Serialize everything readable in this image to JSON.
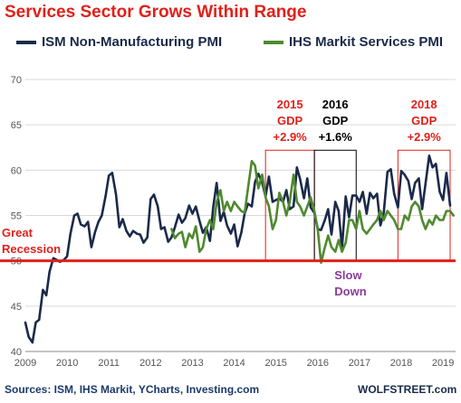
{
  "title": "Services Sector Grows Within Range",
  "source": "Sources: ISM, IHS Markit, YCharts, Investing.com",
  "watermark": "WOLFSTREET.com",
  "colors": {
    "ism": "#1b2a4a",
    "ihs": "#4e8a2e",
    "red": "#e0201a",
    "purple": "#8a3b9e",
    "grid": "#d9d9d9",
    "axis_text": "#555555"
  },
  "chart_data": {
    "type": "line",
    "xlabel": "",
    "ylabel": "",
    "xlim": [
      2009.0,
      2019.3
    ],
    "ylim": [
      40,
      70
    ],
    "xticks": [
      "2009",
      "2010",
      "2011",
      "2012",
      "2013",
      "2014",
      "2015",
      "2016",
      "2017",
      "2018",
      "2019"
    ],
    "yticks": [
      "40",
      "45",
      "50",
      "55",
      "60",
      "65",
      "70"
    ],
    "grid": true,
    "legend": "top",
    "reference_line": {
      "y": 50,
      "label": "Great Recession"
    },
    "series": [
      {
        "name": "ISM Non-Manufacturing PMI",
        "color": "#1b2a4a",
        "points": [
          [
            2009.0,
            43.2
          ],
          [
            2009.08,
            41.6
          ],
          [
            2009.17,
            41.0
          ],
          [
            2009.25,
            43.2
          ],
          [
            2009.33,
            43.5
          ],
          [
            2009.42,
            46.8
          ],
          [
            2009.5,
            46.2
          ],
          [
            2009.58,
            48.8
          ],
          [
            2009.67,
            50.3
          ],
          [
            2009.75,
            50.1
          ],
          [
            2009.83,
            49.9
          ],
          [
            2009.92,
            50.1
          ],
          [
            2010.0,
            50.5
          ],
          [
            2010.08,
            53.0
          ],
          [
            2010.17,
            55.0
          ],
          [
            2010.25,
            55.2
          ],
          [
            2010.33,
            54.0
          ],
          [
            2010.42,
            53.8
          ],
          [
            2010.5,
            54.3
          ],
          [
            2010.58,
            51.5
          ],
          [
            2010.67,
            53.2
          ],
          [
            2010.75,
            54.3
          ],
          [
            2010.83,
            55.0
          ],
          [
            2010.92,
            57.1
          ],
          [
            2011.0,
            59.4
          ],
          [
            2011.08,
            59.7
          ],
          [
            2011.17,
            57.3
          ],
          [
            2011.25,
            53.7
          ],
          [
            2011.33,
            54.6
          ],
          [
            2011.42,
            53.3
          ],
          [
            2011.5,
            52.7
          ],
          [
            2011.58,
            53.3
          ],
          [
            2011.67,
            53.0
          ],
          [
            2011.75,
            52.9
          ],
          [
            2011.83,
            52.0
          ],
          [
            2011.92,
            52.6
          ],
          [
            2012.0,
            56.8
          ],
          [
            2012.08,
            57.3
          ],
          [
            2012.17,
            56.0
          ],
          [
            2012.25,
            53.5
          ],
          [
            2012.33,
            53.7
          ],
          [
            2012.42,
            52.1
          ],
          [
            2012.5,
            52.6
          ],
          [
            2012.58,
            53.7
          ],
          [
            2012.67,
            55.1
          ],
          [
            2012.75,
            54.2
          ],
          [
            2012.83,
            54.7
          ],
          [
            2012.92,
            56.1
          ],
          [
            2013.0,
            55.2
          ],
          [
            2013.08,
            56.0
          ],
          [
            2013.17,
            54.4
          ],
          [
            2013.25,
            53.1
          ],
          [
            2013.33,
            53.7
          ],
          [
            2013.42,
            52.2
          ],
          [
            2013.5,
            56.0
          ],
          [
            2013.58,
            58.6
          ],
          [
            2013.67,
            54.4
          ],
          [
            2013.75,
            55.4
          ],
          [
            2013.83,
            53.9
          ],
          [
            2013.92,
            53.0
          ],
          [
            2014.0,
            54.0
          ],
          [
            2014.08,
            51.6
          ],
          [
            2014.17,
            53.1
          ],
          [
            2014.25,
            55.2
          ],
          [
            2014.33,
            56.3
          ],
          [
            2014.42,
            56.0
          ],
          [
            2014.5,
            58.7
          ],
          [
            2014.58,
            59.6
          ],
          [
            2014.67,
            58.6
          ],
          [
            2014.75,
            57.1
          ],
          [
            2014.83,
            59.3
          ],
          [
            2014.92,
            56.5
          ],
          [
            2015.0,
            56.7
          ],
          [
            2015.08,
            56.9
          ],
          [
            2015.17,
            56.5
          ],
          [
            2015.25,
            57.8
          ],
          [
            2015.33,
            55.7
          ],
          [
            2015.42,
            56.0
          ],
          [
            2015.5,
            60.3
          ],
          [
            2015.58,
            59.0
          ],
          [
            2015.67,
            56.9
          ],
          [
            2015.75,
            59.1
          ],
          [
            2015.83,
            55.9
          ],
          [
            2015.92,
            55.3
          ],
          [
            2016.0,
            53.5
          ],
          [
            2016.08,
            53.4
          ],
          [
            2016.17,
            54.5
          ],
          [
            2016.25,
            55.7
          ],
          [
            2016.33,
            52.9
          ],
          [
            2016.42,
            56.5
          ],
          [
            2016.5,
            55.5
          ],
          [
            2016.58,
            51.4
          ],
          [
            2016.67,
            57.1
          ],
          [
            2016.75,
            54.8
          ],
          [
            2016.83,
            57.2
          ],
          [
            2016.92,
            57.2
          ],
          [
            2017.0,
            56.5
          ],
          [
            2017.08,
            57.6
          ],
          [
            2017.17,
            55.2
          ],
          [
            2017.25,
            57.5
          ],
          [
            2017.33,
            56.9
          ],
          [
            2017.42,
            57.4
          ],
          [
            2017.5,
            53.9
          ],
          [
            2017.58,
            55.3
          ],
          [
            2017.67,
            59.8
          ],
          [
            2017.75,
            60.1
          ],
          [
            2017.83,
            57.4
          ],
          [
            2017.92,
            55.9
          ],
          [
            2018.0,
            59.9
          ],
          [
            2018.08,
            59.5
          ],
          [
            2018.17,
            58.8
          ],
          [
            2018.25,
            56.8
          ],
          [
            2018.33,
            58.6
          ],
          [
            2018.42,
            59.1
          ],
          [
            2018.5,
            55.7
          ],
          [
            2018.58,
            58.5
          ],
          [
            2018.67,
            61.6
          ],
          [
            2018.75,
            60.3
          ],
          [
            2018.83,
            60.7
          ],
          [
            2018.92,
            57.6
          ],
          [
            2019.0,
            56.7
          ],
          [
            2019.08,
            59.7
          ],
          [
            2019.17,
            56.1
          ]
        ]
      },
      {
        "name": "IHS Markit Services PMI",
        "color": "#4e8a2e",
        "points": [
          [
            2012.5,
            53.5
          ],
          [
            2012.58,
            52.5
          ],
          [
            2012.67,
            53.0
          ],
          [
            2012.75,
            53.2
          ],
          [
            2012.83,
            51.5
          ],
          [
            2012.92,
            53.0
          ],
          [
            2013.0,
            52.5
          ],
          [
            2013.08,
            53.8
          ],
          [
            2013.17,
            51.0
          ],
          [
            2013.25,
            51.5
          ],
          [
            2013.33,
            53.5
          ],
          [
            2013.42,
            54.5
          ],
          [
            2013.5,
            53.5
          ],
          [
            2013.58,
            56.5
          ],
          [
            2013.67,
            57.8
          ],
          [
            2013.75,
            55.5
          ],
          [
            2013.83,
            56.5
          ],
          [
            2013.92,
            55.5
          ],
          [
            2014.0,
            56.5
          ],
          [
            2014.08,
            56.0
          ],
          [
            2014.17,
            55.5
          ],
          [
            2014.25,
            55.3
          ],
          [
            2014.33,
            58.0
          ],
          [
            2014.42,
            61.0
          ],
          [
            2014.5,
            60.5
          ],
          [
            2014.58,
            58.0
          ],
          [
            2014.67,
            59.5
          ],
          [
            2014.75,
            57.0
          ],
          [
            2014.83,
            56.0
          ],
          [
            2014.92,
            53.5
          ],
          [
            2015.0,
            54.5
          ],
          [
            2015.08,
            57.5
          ],
          [
            2015.17,
            56.5
          ],
          [
            2015.25,
            55.0
          ],
          [
            2015.33,
            56.5
          ],
          [
            2015.42,
            59.5
          ],
          [
            2015.5,
            56.5
          ],
          [
            2015.58,
            56.0
          ],
          [
            2015.67,
            55.0
          ],
          [
            2015.75,
            56.0
          ],
          [
            2015.83,
            57.0
          ],
          [
            2015.92,
            55.5
          ],
          [
            2016.0,
            53.5
          ],
          [
            2016.08,
            49.8
          ],
          [
            2016.17,
            51.5
          ],
          [
            2016.25,
            52.8
          ],
          [
            2016.33,
            51.5
          ],
          [
            2016.42,
            51.0
          ],
          [
            2016.5,
            52.3
          ],
          [
            2016.58,
            51.0
          ],
          [
            2016.67,
            52.0
          ],
          [
            2016.75,
            54.5
          ],
          [
            2016.83,
            54.5
          ],
          [
            2016.92,
            53.5
          ],
          [
            2017.0,
            55.5
          ],
          [
            2017.08,
            53.5
          ],
          [
            2017.17,
            53.0
          ],
          [
            2017.25,
            53.5
          ],
          [
            2017.33,
            54.0
          ],
          [
            2017.42,
            54.5
          ],
          [
            2017.5,
            55.5
          ],
          [
            2017.58,
            54.5
          ],
          [
            2017.67,
            55.5
          ],
          [
            2017.75,
            55.0
          ],
          [
            2017.83,
            54.5
          ],
          [
            2017.92,
            53.5
          ],
          [
            2018.0,
            53.5
          ],
          [
            2018.08,
            55.0
          ],
          [
            2018.17,
            54.5
          ],
          [
            2018.25,
            56.0
          ],
          [
            2018.33,
            56.5
          ],
          [
            2018.42,
            56.0
          ],
          [
            2018.5,
            54.5
          ],
          [
            2018.58,
            53.5
          ],
          [
            2018.67,
            54.5
          ],
          [
            2018.75,
            54.0
          ],
          [
            2018.83,
            55.0
          ],
          [
            2018.92,
            54.5
          ],
          [
            2019.0,
            54.5
          ],
          [
            2019.08,
            55.5
          ],
          [
            2019.17,
            55.5
          ],
          [
            2019.25,
            55.0
          ]
        ]
      }
    ],
    "highlight_boxes": [
      {
        "x0": 2014.75,
        "x1": 2015.92,
        "y0": 50,
        "y1": 62.2,
        "color": "#e0201a",
        "label_lines": [
          "2015",
          "GDP",
          "+2.9%"
        ]
      },
      {
        "x0": 2015.92,
        "x1": 2016.92,
        "y0": 50,
        "y1": 62.2,
        "color": "#000000",
        "label_lines": [
          "2016",
          "GDP",
          "+1.6%"
        ]
      },
      {
        "x0": 2017.92,
        "x1": 2019.17,
        "y0": 50,
        "y1": 62.2,
        "color": "#e0201a",
        "label_lines": [
          "2018",
          "GDP",
          "+2.9%"
        ]
      }
    ],
    "annotations": [
      {
        "text_lines": [
          "Great",
          "Recession"
        ],
        "color": "#e0201a",
        "x": 2009.0,
        "y": 52.5
      },
      {
        "text_lines": [
          "Slow",
          "Down"
        ],
        "color": "#8a3b9e",
        "x": 2016.4,
        "y": 48.0
      }
    ]
  }
}
